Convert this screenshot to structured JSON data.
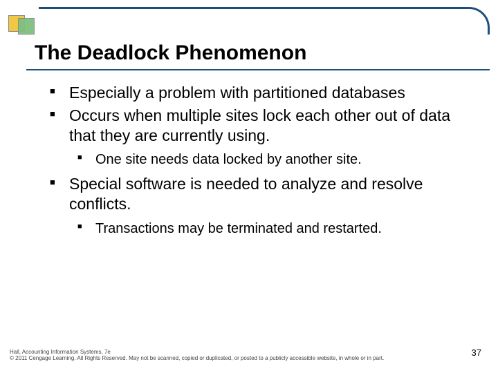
{
  "colors": {
    "border": "#1f4e79",
    "logo_square1": "#f2c744",
    "logo_square2": "#7fbf7f",
    "background": "#ffffff",
    "text": "#000000",
    "footer_text": "#444444"
  },
  "typography": {
    "title_fontsize": 30,
    "level1_fontsize": 23,
    "level2_fontsize": 20,
    "footer_fontsize": 8,
    "pagenum_fontsize": 13,
    "font_family": "Arial"
  },
  "title": "The Deadlock Phenomenon",
  "bullets": [
    {
      "text": "Especially a problem with partitioned databases",
      "children": []
    },
    {
      "text": "Occurs when multiple sites lock each other out of data that they are currently using.",
      "children": [
        {
          "text": "One site needs data locked by another site."
        }
      ]
    },
    {
      "text": "Special software is needed to analyze and resolve conflicts.",
      "children": [
        {
          "text": "Transactions may be terminated and restarted."
        }
      ]
    }
  ],
  "footer": {
    "line1": "Hall, Accounting Information Systems, 7e",
    "line2": "© 2011 Cengage Learning. All Rights Reserved. May not be scanned, copied or duplicated, or posted to a publicly accessible website, in whole or in part."
  },
  "page_number": "37"
}
